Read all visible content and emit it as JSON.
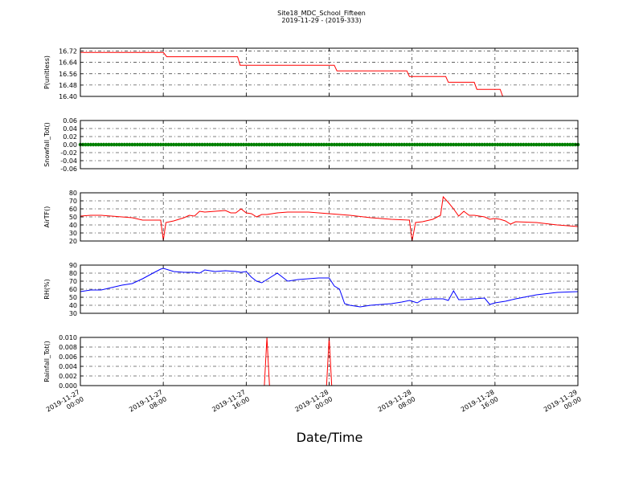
{
  "title": "Site18_MDC_School_Fifteen",
  "subtitle": "2019-11-29 - (2019-333)",
  "xlabel": "Date/Time",
  "x_ticks": [
    {
      "time": "2019-11-27 00:00",
      "line1": "2019-11-27",
      "line2": "00:00"
    },
    {
      "time": "2019-11-27 08:00",
      "line1": "2019-11-27",
      "line2": "08:00"
    },
    {
      "time": "2019-11-27 16:00",
      "line1": "2019-11-27",
      "line2": "16:00"
    },
    {
      "time": "2019-11-28 00:00",
      "line1": "2019-11-28",
      "line2": "00:00"
    },
    {
      "time": "2019-11-28 08:00",
      "line1": "2019-11-28",
      "line2": "08:00"
    },
    {
      "time": "2019-11-28 16:00",
      "line1": "2019-11-28",
      "line2": "16:00"
    },
    {
      "time": "2019-11-29 00:00",
      "line1": "2019-11-29",
      "line2": "00:00"
    }
  ],
  "chart_data": [
    {
      "type": "line",
      "ylabel": "P(unitless)",
      "color": "#ff0000",
      "ylim": [
        16.4,
        16.74
      ],
      "yticks": [
        16.4,
        16.48,
        16.56,
        16.64,
        16.72
      ],
      "tick_decimals": 2,
      "grid": true,
      "series": [
        {
          "x": [
            "2019-11-27 00:00",
            "2019-11-27 02:00",
            "2019-11-27 04:00",
            "2019-11-27 06:00",
            "2019-11-27 08:00",
            "2019-11-27 08:20",
            "2019-11-27 10:00",
            "2019-11-27 12:00",
            "2019-11-27 14:00",
            "2019-11-27 15:10",
            "2019-11-27 15:25",
            "2019-11-27 18:00",
            "2019-11-27 21:00",
            "2019-11-28 00:00",
            "2019-11-28 00:30",
            "2019-11-28 00:45",
            "2019-11-28 03:00",
            "2019-11-28 06:00",
            "2019-11-28 07:30",
            "2019-11-28 07:45",
            "2019-11-28 10:00",
            "2019-11-28 11:15",
            "2019-11-28 11:30",
            "2019-11-28 13:30",
            "2019-11-28 14:00",
            "2019-11-28 14:15",
            "2019-11-28 15:30",
            "2019-11-28 16:30",
            "2019-11-28 16:45",
            "2019-11-28 20:00",
            "2019-11-29 00:00"
          ],
          "values": [
            16.71,
            16.71,
            16.71,
            16.71,
            16.71,
            16.68,
            16.68,
            16.68,
            16.68,
            16.68,
            16.62,
            16.62,
            16.62,
            16.62,
            16.62,
            16.58,
            16.58,
            16.58,
            16.58,
            16.54,
            16.54,
            16.54,
            16.5,
            16.5,
            16.5,
            16.45,
            16.45,
            16.45,
            16.4,
            16.4,
            16.4
          ]
        }
      ]
    },
    {
      "type": "scatter",
      "ylabel": "Snowfall_Tot()",
      "color": "#008000",
      "ylim": [
        -0.06,
        0.06
      ],
      "yticks": [
        -0.06,
        -0.04,
        -0.02,
        0.0,
        0.02,
        0.04,
        0.06
      ],
      "tick_decimals": 2,
      "grid": true,
      "series": [
        {
          "x_range": [
            "2019-11-27 00:00",
            "2019-11-29 00:00"
          ],
          "interval_minutes": 15,
          "constant_value": 0.0
        }
      ]
    },
    {
      "type": "line",
      "ylabel": "AirTF()",
      "color": "#ff0000",
      "ylim": [
        20,
        80
      ],
      "yticks": [
        20,
        30,
        40,
        50,
        60,
        70,
        80
      ],
      "tick_decimals": 0,
      "grid": true,
      "series": [
        {
          "x": [
            "2019-11-27 00:00",
            "2019-11-27 01:00",
            "2019-11-27 02:00",
            "2019-11-27 03:00",
            "2019-11-27 04:00",
            "2019-11-27 05:00",
            "2019-11-27 06:00",
            "2019-11-27 07:00",
            "2019-11-27 07:45",
            "2019-11-27 08:00",
            "2019-11-27 08:15",
            "2019-11-27 09:00",
            "2019-11-27 09:30",
            "2019-11-27 10:00",
            "2019-11-27 10:30",
            "2019-11-27 11:00",
            "2019-11-27 11:30",
            "2019-11-27 12:00",
            "2019-11-27 13:00",
            "2019-11-27 14:00",
            "2019-11-27 14:30",
            "2019-11-27 15:00",
            "2019-11-27 15:30",
            "2019-11-27 16:00",
            "2019-11-27 16:30",
            "2019-11-27 17:00",
            "2019-11-27 17:30",
            "2019-11-27 18:00",
            "2019-11-27 19:00",
            "2019-11-27 20:00",
            "2019-11-27 21:00",
            "2019-11-27 22:00",
            "2019-11-27 23:00",
            "2019-11-28 00:00",
            "2019-11-28 02:00",
            "2019-11-28 04:00",
            "2019-11-28 06:00",
            "2019-11-28 07:45",
            "2019-11-28 08:00",
            "2019-11-28 08:20",
            "2019-11-28 09:00",
            "2019-11-28 10:00",
            "2019-11-28 10:45",
            "2019-11-28 11:00",
            "2019-11-28 11:30",
            "2019-11-28 12:00",
            "2019-11-28 12:30",
            "2019-11-28 13:00",
            "2019-11-28 13:30",
            "2019-11-28 14:00",
            "2019-11-28 15:00",
            "2019-11-28 15:30",
            "2019-11-28 16:00",
            "2019-11-28 16:30",
            "2019-11-28 17:00",
            "2019-11-28 17:30",
            "2019-11-28 18:00",
            "2019-11-28 20:00",
            "2019-11-28 22:00",
            "2019-11-29 00:00"
          ],
          "values": [
            51,
            52,
            52,
            51,
            50,
            49,
            46,
            46,
            46,
            21,
            43,
            45,
            47,
            49,
            52,
            51,
            57,
            56,
            57,
            58,
            55,
            55,
            60,
            55,
            54,
            50,
            53,
            53,
            55,
            56,
            56,
            56,
            55,
            54,
            52,
            49,
            47,
            46,
            20,
            43,
            44,
            47,
            52,
            75,
            68,
            60,
            51,
            57,
            52,
            52,
            50,
            47,
            48,
            47,
            45,
            41,
            44,
            43,
            40,
            38
          ]
        }
      ]
    },
    {
      "type": "line",
      "ylabel": "RH(%)",
      "color": "#0000ff",
      "ylim": [
        30,
        90
      ],
      "yticks": [
        30,
        40,
        50,
        60,
        70,
        80,
        90
      ],
      "tick_decimals": 0,
      "grid": true,
      "series": [
        {
          "x": [
            "2019-11-27 00:00",
            "2019-11-27 01:00",
            "2019-11-27 02:00",
            "2019-11-27 03:00",
            "2019-11-27 04:00",
            "2019-11-27 05:00",
            "2019-11-27 06:00",
            "2019-11-27 07:00",
            "2019-11-27 07:45",
            "2019-11-27 08:00",
            "2019-11-27 09:00",
            "2019-11-27 10:00",
            "2019-11-27 11:00",
            "2019-11-27 11:30",
            "2019-11-27 12:00",
            "2019-11-27 13:00",
            "2019-11-27 14:00",
            "2019-11-27 15:00",
            "2019-11-27 15:30",
            "2019-11-27 16:00",
            "2019-11-27 16:30",
            "2019-11-27 17:00",
            "2019-11-27 17:30",
            "2019-11-27 18:00",
            "2019-11-27 19:00",
            "2019-11-27 20:00",
            "2019-11-27 21:00",
            "2019-11-27 22:00",
            "2019-11-27 23:00",
            "2019-11-28 00:00",
            "2019-11-28 00:30",
            "2019-11-28 01:00",
            "2019-11-28 01:30",
            "2019-11-28 02:00",
            "2019-11-28 03:00",
            "2019-11-28 04:00",
            "2019-11-28 05:00",
            "2019-11-28 06:00",
            "2019-11-28 07:00",
            "2019-11-28 07:45",
            "2019-11-28 08:00",
            "2019-11-28 08:30",
            "2019-11-28 09:00",
            "2019-11-28 10:00",
            "2019-11-28 11:00",
            "2019-11-28 11:30",
            "2019-11-28 12:00",
            "2019-11-28 12:30",
            "2019-11-28 13:00",
            "2019-11-28 14:00",
            "2019-11-28 15:00",
            "2019-11-28 15:30",
            "2019-11-28 16:00",
            "2019-11-28 17:00",
            "2019-11-28 18:00",
            "2019-11-28 20:00",
            "2019-11-28 22:00",
            "2019-11-29 00:00"
          ],
          "values": [
            57,
            59,
            59,
            62,
            65,
            67,
            73,
            80,
            85,
            86,
            82,
            81,
            81,
            80,
            84,
            82,
            83,
            82,
            81,
            82,
            75,
            70,
            68,
            72,
            80,
            70,
            72,
            73,
            74,
            74,
            64,
            60,
            42,
            40,
            38,
            40,
            41,
            42,
            44,
            46,
            45,
            43,
            47,
            48,
            48,
            46,
            58,
            47,
            47,
            48,
            49,
            41,
            43,
            45,
            48,
            53,
            56,
            57
          ]
        }
      ]
    },
    {
      "type": "line",
      "ylabel": "Rainfall_Tot()",
      "color": "#ff0000",
      "ylim": [
        0.0,
        0.01
      ],
      "yticks": [
        0.0,
        0.002,
        0.004,
        0.006,
        0.008,
        0.01
      ],
      "tick_decimals": 3,
      "grid": true,
      "series": [
        {
          "x": [
            "2019-11-27 00:00",
            "2019-11-27 17:45",
            "2019-11-27 18:00",
            "2019-11-27 18:15",
            "2019-11-27 23:45",
            "2019-11-28 00:00",
            "2019-11-28 00:15",
            "2019-11-29 00:00"
          ],
          "values": [
            0,
            0,
            0.01,
            0,
            0,
            0.01,
            0,
            0
          ]
        }
      ]
    }
  ]
}
